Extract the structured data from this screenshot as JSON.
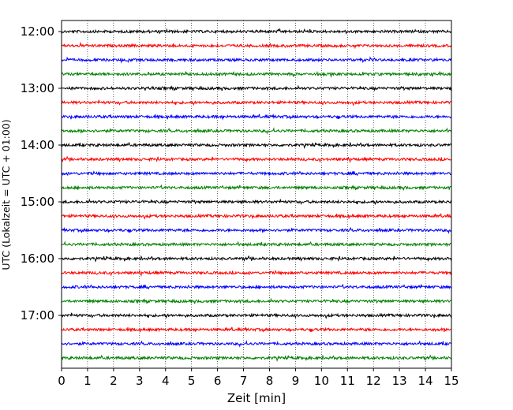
{
  "chart_data": {
    "type": "line",
    "title": "",
    "xlabel": "Zeit  [min]",
    "ylabel": "UTC (Lokalzeit = UTC + 01:00)",
    "xlim": [
      0,
      15
    ],
    "x_ticks": [
      "0",
      "1",
      "2",
      "3",
      "4",
      "5",
      "6",
      "7",
      "8",
      "9",
      "10",
      "11",
      "12",
      "13",
      "14",
      "15"
    ],
    "y_ticks": [
      "12:00",
      "13:00",
      "14:00",
      "15:00",
      "16:00",
      "17:00"
    ],
    "grid": "vertical dotted",
    "trace_colors": [
      "#000000",
      "#ff0000",
      "#0000ff",
      "#008000"
    ],
    "trace_start_times": [
      "12:00",
      "12:15",
      "12:30",
      "12:45",
      "13:00",
      "13:15",
      "13:30",
      "13:45",
      "14:00",
      "14:15",
      "14:30",
      "14:45",
      "15:00",
      "15:15",
      "15:30",
      "15:45",
      "16:00",
      "16:15",
      "16:30",
      "16:45",
      "17:00",
      "17:15",
      "17:30",
      "17:45"
    ]
  }
}
